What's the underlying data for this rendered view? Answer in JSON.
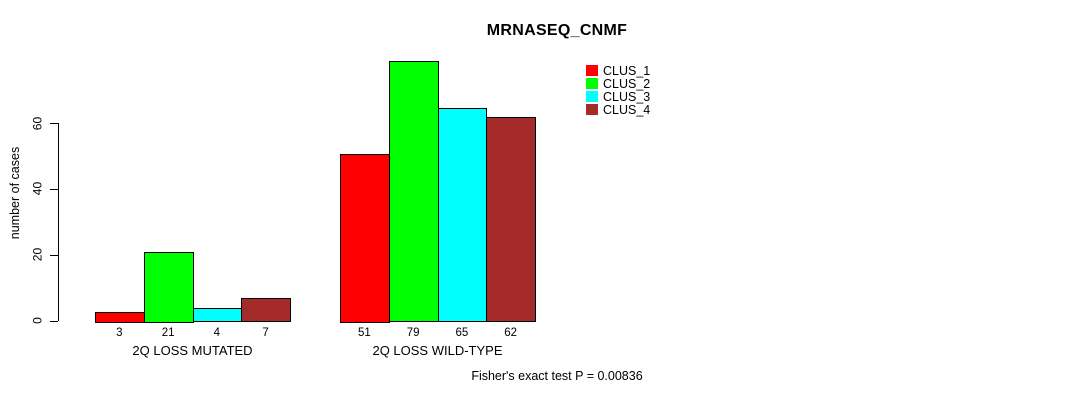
{
  "title": "MRNASEQ_CNMF",
  "footer": "Fisher's exact test P = 0.00836",
  "chart_data": {
    "type": "bar",
    "title": "MRNASEQ_CNMF",
    "ylabel": "number of cases",
    "xlabel": "",
    "categories": [
      "2Q LOSS MUTATED",
      "2Q LOSS WILD-TYPE"
    ],
    "series": [
      {
        "name": "CLUS_1",
        "color": "#ff0000",
        "values": [
          3,
          51
        ]
      },
      {
        "name": "CLUS_2",
        "color": "#00ff00",
        "values": [
          21,
          79
        ]
      },
      {
        "name": "CLUS_3",
        "color": "#00ffff",
        "values": [
          4,
          65
        ]
      },
      {
        "name": "CLUS_4",
        "color": "#a52a2a",
        "values": [
          7,
          62
        ]
      }
    ],
    "bar_value_labels": [
      [
        3,
        21,
        4,
        7
      ],
      [
        51,
        79,
        65,
        62
      ]
    ],
    "yticks": [
      0,
      20,
      40,
      60
    ],
    "ylim": [
      0,
      79
    ],
    "grid": false,
    "legend_position": "top-right",
    "legend_entries": [
      "CLUS_1",
      "CLUS_2",
      "CLUS_3",
      "CLUS_4"
    ],
    "annotation": "Fisher's exact test P = 0.00836"
  }
}
